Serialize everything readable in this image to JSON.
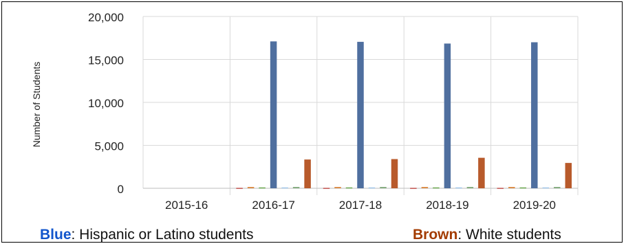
{
  "chart_data": {
    "type": "bar",
    "ylabel": "Number of Students",
    "ylim": [
      0,
      20000
    ],
    "y_ticks": [
      "0",
      "5,000",
      "10,000",
      "15,000",
      "20,000"
    ],
    "y_tick_values": [
      0,
      5000,
      10000,
      15000,
      20000
    ],
    "categories": [
      "2015-16",
      "2016-17",
      "2017-18",
      "2018-19",
      "2019-20"
    ],
    "grid": true,
    "series": [
      {
        "color": "#c0504d",
        "values": [
          0,
          50,
          50,
          50,
          50
        ]
      },
      {
        "color": "#d9873e",
        "values": [
          0,
          150,
          150,
          150,
          150
        ]
      },
      {
        "color": "#6aa84f",
        "values": [
          0,
          100,
          100,
          100,
          100
        ]
      },
      {
        "color": "#4f6f9f",
        "values": [
          0,
          17100,
          17050,
          16850,
          17000
        ]
      },
      {
        "color": "#9fc5e8",
        "values": [
          0,
          100,
          100,
          100,
          100
        ]
      },
      {
        "color": "#7fa87a",
        "values": [
          0,
          150,
          150,
          150,
          150
        ]
      },
      {
        "color": "#b85a2b",
        "values": [
          0,
          3350,
          3400,
          3550,
          2950
        ]
      }
    ]
  },
  "legend": {
    "blue_key": "Blue",
    "blue_text": ": Hispanic or Latino students",
    "blue_color": "#1155cc",
    "brown_key": "Brown",
    "brown_text": ": White students",
    "brown_color": "#a33b00"
  }
}
